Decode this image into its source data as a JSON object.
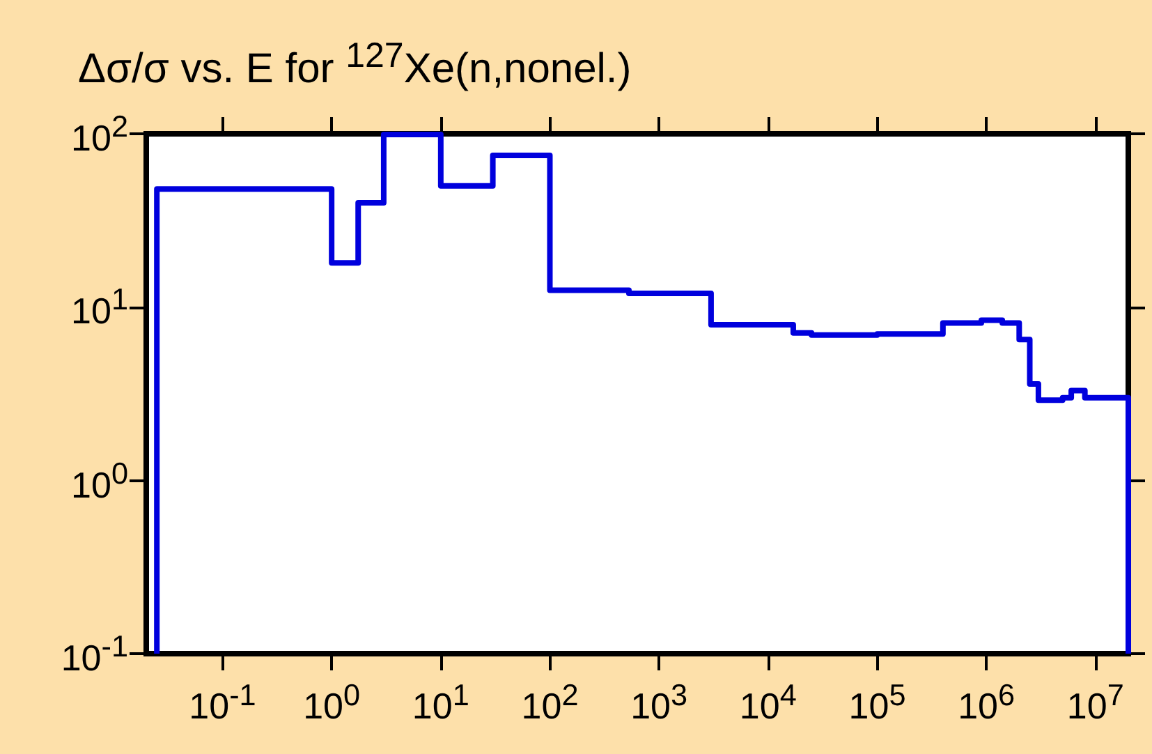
{
  "chart_data": {
    "type": "step",
    "title": "Δσ/σ vs. E for $^{127}$Xe(n,nonel.)",
    "log": "xy",
    "grid": false,
    "marker": "none",
    "line_style": "solid",
    "x": [
      0.025,
      0.025,
      1,
      1.75,
      3,
      10,
      30,
      100,
      530,
      3000,
      17000,
      25000,
      100000,
      400000,
      900000,
      1400000,
      2000000,
      2500000,
      3000000,
      5000000,
      6000000,
      8000000,
      20000000,
      20000000
    ],
    "series": [
      {
        "color": "#0000dd",
        "values": [
          0.1,
          48,
          48,
          18,
          40,
          99,
          50,
          75,
          12.5,
          12,
          7.9,
          7.1,
          6.9,
          7,
          8.1,
          8.4,
          8.1,
          6.5,
          3.6,
          2.9,
          3,
          3.3,
          3,
          0.1
        ]
      }
    ],
    "xlim": [
      0.02,
      20000000
    ],
    "xticks": [
      {
        "value": 0.1,
        "label": "10$^{-1}$"
      },
      {
        "value": 1,
        "label": "10$^{0}$"
      },
      {
        "value": 10,
        "label": "10$^{1}$"
      },
      {
        "value": 100,
        "label": "10$^{2}$"
      },
      {
        "value": 1000,
        "label": "10$^{3}$"
      },
      {
        "value": 10000,
        "label": "10$^{4}$"
      },
      {
        "value": 100000,
        "label": "10$^{5}$"
      },
      {
        "value": 1000000,
        "label": "10$^{6}$"
      },
      {
        "value": 10000000,
        "label": "10$^{7}$"
      }
    ],
    "ylim": [
      0.1,
      100
    ],
    "yticks": [
      {
        "value": 0.1,
        "label": "10$^{-1}$"
      },
      {
        "value": 1,
        "label": "10$^{0}$"
      },
      {
        "value": 10,
        "label": "10$^{1}$"
      },
      {
        "value": 100,
        "label": "10$^{2}$"
      }
    ]
  }
}
